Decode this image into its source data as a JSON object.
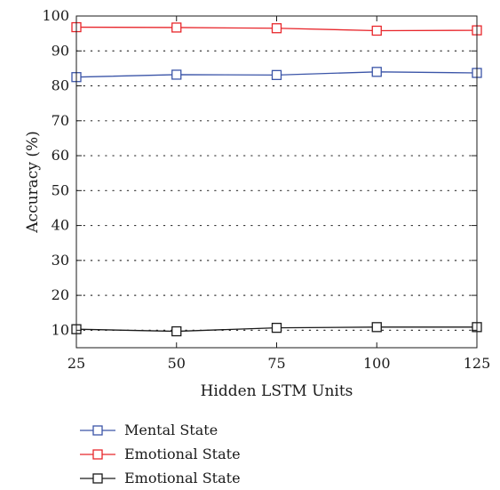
{
  "chart_data": {
    "type": "line",
    "title": "",
    "xlabel": "Hidden LSTM Units",
    "ylabel": "Accuracy (%)",
    "x": [
      25,
      50,
      75,
      100,
      125
    ],
    "xlim": [
      25,
      125
    ],
    "ylim": [
      5,
      100
    ],
    "xticks": [
      "25",
      "50",
      "75",
      "100",
      "125"
    ],
    "yticks": [
      "10",
      "20",
      "30",
      "40",
      "50",
      "60",
      "70",
      "80",
      "90",
      "100"
    ],
    "grid": "dotted horizontal",
    "legend_position": "bottom",
    "series": [
      {
        "name": "Mental State",
        "color": "#3b55a8",
        "marker": "square",
        "values": [
          82.5,
          83.2,
          83.1,
          84.0,
          83.7
        ]
      },
      {
        "name": "Emotional State",
        "color": "#e8262b",
        "marker": "square",
        "values": [
          96.8,
          96.7,
          96.5,
          95.8,
          95.9
        ]
      },
      {
        "name": "Emotional State",
        "color": "#1a1a1a",
        "marker": "square",
        "values": [
          10.3,
          9.7,
          10.7,
          10.9,
          10.9
        ]
      }
    ]
  }
}
